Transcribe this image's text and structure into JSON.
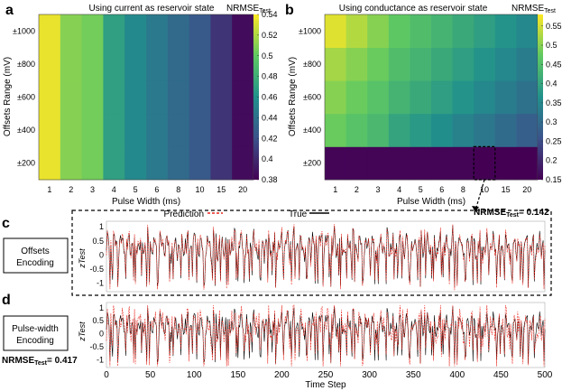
{
  "panel_letters": [
    "a",
    "b",
    "c",
    "d"
  ],
  "heatmap_x_categories": [
    "1",
    "2",
    "3",
    "4",
    "5",
    "6",
    "8",
    "10",
    "15",
    "20"
  ],
  "heatmap_y_categories": [
    "±200",
    "±400",
    "±600",
    "±800",
    "±1000"
  ],
  "heatmap_xlabel": "Pulse Width (ms)",
  "heatmap_ylabel": "Offsets Range (mV)",
  "colorbar_label_main": "NRMSE",
  "colorbar_label_sub": "Test",
  "colors": {
    "viridis": [
      "#440154",
      "#3b528b",
      "#21918c",
      "#5ec962",
      "#fde725"
    ],
    "prediction": "#e8281e",
    "true": "#000000",
    "highlight": "#000000"
  },
  "chart_data": [
    {
      "type": "heatmap",
      "panel": "a",
      "title": "Using current as reservoir state",
      "x": [
        "1",
        "2",
        "3",
        "4",
        "5",
        "6",
        "8",
        "10",
        "15",
        "20"
      ],
      "y": [
        "±200",
        "±400",
        "±600",
        "±800",
        "±1000"
      ],
      "values": [
        [
          0.535,
          0.51,
          0.505,
          0.47,
          0.455,
          0.445,
          0.435,
          0.425,
          0.405,
          0.385
        ],
        [
          0.535,
          0.51,
          0.505,
          0.47,
          0.455,
          0.445,
          0.435,
          0.425,
          0.405,
          0.385
        ],
        [
          0.535,
          0.51,
          0.505,
          0.47,
          0.455,
          0.445,
          0.435,
          0.425,
          0.405,
          0.385
        ],
        [
          0.535,
          0.51,
          0.505,
          0.47,
          0.455,
          0.445,
          0.435,
          0.425,
          0.405,
          0.385
        ],
        [
          0.535,
          0.51,
          0.505,
          0.47,
          0.455,
          0.445,
          0.435,
          0.425,
          0.405,
          0.385
        ]
      ],
      "clim": [
        0.38,
        0.54
      ],
      "colorbar_ticks": [
        "0.54",
        "0.52",
        "0.5",
        "0.48",
        "0.46",
        "0.44",
        "0.42",
        "0.4",
        "0.38"
      ],
      "xlabel": "Pulse Width (ms)",
      "ylabel": "Offsets Range (mV)"
    },
    {
      "type": "heatmap",
      "panel": "b",
      "title": "Using conductance as reservoir state",
      "x": [
        "1",
        "2",
        "3",
        "4",
        "5",
        "6",
        "8",
        "10",
        "15",
        "20"
      ],
      "y": [
        "±200",
        "±400",
        "±600",
        "±800",
        "±1000"
      ],
      "values": [
        [
          0.155,
          0.155,
          0.155,
          0.155,
          0.155,
          0.155,
          0.155,
          0.142,
          0.15,
          0.145
        ],
        [
          0.48,
          0.46,
          0.44,
          0.4,
          0.38,
          0.36,
          0.34,
          0.32,
          0.3,
          0.28
        ],
        [
          0.5,
          0.48,
          0.46,
          0.43,
          0.41,
          0.39,
          0.37,
          0.35,
          0.33,
          0.31
        ],
        [
          0.52,
          0.5,
          0.48,
          0.45,
          0.43,
          0.41,
          0.39,
          0.37,
          0.35,
          0.33
        ],
        [
          0.56,
          0.53,
          0.5,
          0.47,
          0.45,
          0.43,
          0.41,
          0.39,
          0.37,
          0.35
        ]
      ],
      "clim": [
        0.15,
        0.58
      ],
      "colorbar_ticks": [
        "0.55",
        "0.5",
        "0.45",
        "0.4",
        "0.35",
        "0.3",
        "0.25",
        "0.2",
        "0.15"
      ],
      "highlight": {
        "x": "10",
        "y": "±200",
        "nrmse": "0.142"
      },
      "xlabel": "Pulse Width (ms)",
      "ylabel": "Offsets Range (mV)"
    },
    {
      "type": "line",
      "panel": "c",
      "label_line1": "Offsets",
      "label_line2": "Encoding",
      "ylabel": "zTest",
      "yticks": [
        "1",
        "0.5",
        "0",
        "-0.5",
        "-1"
      ],
      "ylim": [
        -1.3,
        1.2
      ],
      "xlim": [
        0,
        500
      ],
      "legend": [
        "Prediction",
        "True"
      ],
      "nrmse_text": "NRMSE",
      "nrmse_sub": "Test",
      "nrmse_value": "= 0.142"
    },
    {
      "type": "line",
      "panel": "d",
      "label_line1": "Pulse-width",
      "label_line2": "Encoding",
      "ylabel": "zTest",
      "yticks": [
        "1",
        "0.5",
        "0",
        "-0.5",
        "-1"
      ],
      "ylim": [
        -1.3,
        1.2
      ],
      "xlim": [
        0,
        500
      ],
      "xticks": [
        "0",
        "50",
        "100",
        "150",
        "200",
        "250",
        "300",
        "350",
        "400",
        "450",
        "500"
      ],
      "xlabel": "Time Step",
      "nrmse_text": "NRMSE",
      "nrmse_sub": "Test",
      "nrmse_value": "= 0.417"
    }
  ]
}
